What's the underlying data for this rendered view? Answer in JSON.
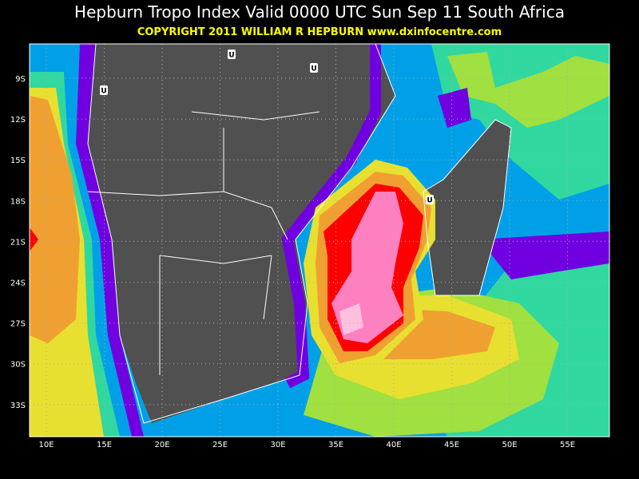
{
  "title": "Hepburn Tropo Index Valid 0000 UTC Sun Sep 11 South Africa",
  "copyright": "COPYRIGHT 2011   WILLIAM R HEPBURN   www.dxinfocentre.com",
  "lat_labels": [
    "9S",
    "12S",
    "15S",
    "18S",
    "21S",
    "24S",
    "27S",
    "30S",
    "33S"
  ],
  "lon_labels": [
    "10E",
    "15E",
    "20E",
    "25E",
    "30E",
    "35E",
    "40E",
    "45E",
    "50E",
    "55E"
  ],
  "markers": [
    "U",
    "U",
    "U",
    "U"
  ]
}
